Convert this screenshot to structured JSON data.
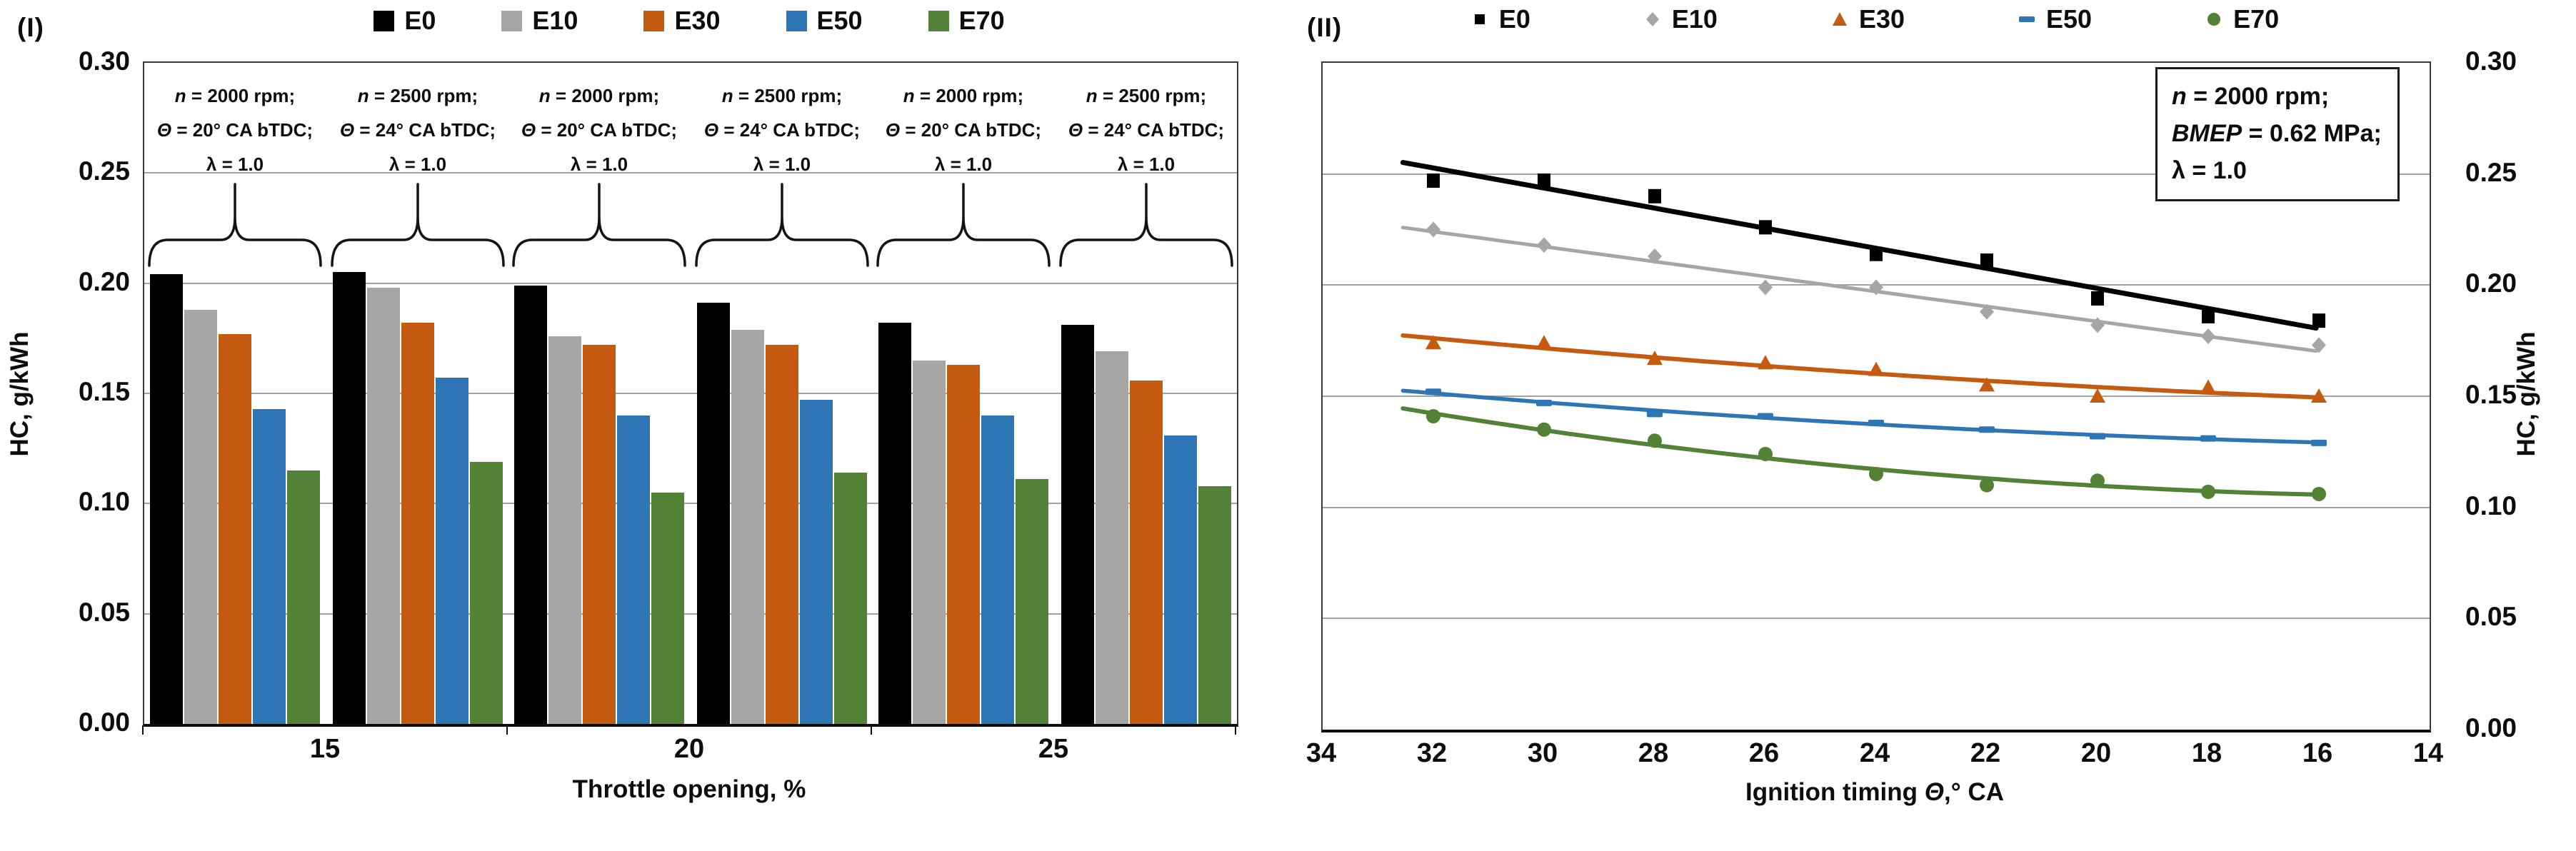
{
  "chart_data": [
    {
      "type": "bar",
      "panel_label": "(I)",
      "ylabel": "HC, g/kWh",
      "xlabel": "Throttle opening, %",
      "ylim": [
        0,
        0.3
      ],
      "yticks": [
        "0.30",
        "0.25",
        "0.20",
        "0.15",
        "0.10",
        "0.05",
        "0.00"
      ],
      "categories": [
        "15",
        "20",
        "25"
      ],
      "legend": [
        "E0",
        "E10",
        "E30",
        "E50",
        "E70"
      ],
      "series_colors": [
        "#000000",
        "#A6A6A6",
        "#C55A11",
        "#2E75B6",
        "#538135"
      ],
      "grid": true,
      "legend_position": "top",
      "groups": [
        {
          "category": "15",
          "conditions": [
            "n = 2000 rpm;",
            "Θ = 20° CA bTDC;",
            "λ = 1.0"
          ],
          "values": [
            0.204,
            0.188,
            0.177,
            0.143,
            0.115
          ]
        },
        {
          "category": "15",
          "conditions": [
            "n = 2500 rpm;",
            "Θ = 24° CA bTDC;",
            "λ = 1.0"
          ],
          "values": [
            0.205,
            0.198,
            0.182,
            0.157,
            0.119
          ]
        },
        {
          "category": "20",
          "conditions": [
            "n = 2000 rpm;",
            "Θ = 20° CA bTDC;",
            "λ = 1.0"
          ],
          "values": [
            0.199,
            0.176,
            0.172,
            0.14,
            0.105
          ]
        },
        {
          "category": "20",
          "conditions": [
            "n = 2500 rpm;",
            "Θ = 24° CA bTDC;",
            "λ = 1.0"
          ],
          "values": [
            0.191,
            0.179,
            0.172,
            0.147,
            0.114
          ]
        },
        {
          "category": "25",
          "conditions": [
            "n = 2000 rpm;",
            "Θ = 20° CA bTDC;",
            "λ = 1.0"
          ],
          "values": [
            0.182,
            0.165,
            0.163,
            0.14,
            0.111
          ]
        },
        {
          "category": "25",
          "conditions": [
            "n = 2500 rpm;",
            "Θ = 24° CA bTDC;",
            "λ = 1.0"
          ],
          "values": [
            0.181,
            0.169,
            0.156,
            0.131,
            0.108
          ]
        }
      ]
    },
    {
      "type": "scatter",
      "panel_label": "(II)",
      "ylabel": "HC, g/kWh",
      "xlabel_prefix": "Ignition timing ",
      "xlabel_symbol": "Θ",
      "xlabel_suffix": ",° CA",
      "xlim": [
        34,
        14
      ],
      "ylim": [
        0,
        0.3
      ],
      "xticks": [
        "34",
        "32",
        "30",
        "28",
        "26",
        "24",
        "22",
        "20",
        "18",
        "16",
        "14"
      ],
      "yticks": [
        "0.30",
        "0.25",
        "0.20",
        "0.15",
        "0.10",
        "0.05",
        "0.00"
      ],
      "grid": true,
      "legend_position": "top",
      "x": [
        32,
        30,
        28,
        26,
        24,
        22,
        20,
        18,
        16
      ],
      "series": [
        {
          "name": "E0",
          "marker": "square",
          "color": "#000000",
          "trend": "linear",
          "values": [
            0.247,
            0.247,
            0.24,
            0.226,
            0.214,
            0.211,
            0.194,
            0.186,
            0.184
          ]
        },
        {
          "name": "E10",
          "marker": "diamond",
          "color": "#A6A6A6",
          "trend": "linear",
          "values": [
            0.225,
            0.218,
            0.213,
            0.199,
            0.199,
            0.188,
            0.182,
            0.177,
            0.173
          ]
        },
        {
          "name": "E30",
          "marker": "triangle",
          "color": "#C55A11",
          "trend": "poly2",
          "values": [
            0.174,
            0.174,
            0.167,
            0.165,
            0.162,
            0.155,
            0.15,
            0.154,
            0.15
          ]
        },
        {
          "name": "E50",
          "marker": "dash",
          "color": "#2E75B6",
          "trend": "poly2",
          "values": [
            0.152,
            0.147,
            0.142,
            0.141,
            0.138,
            0.135,
            0.132,
            0.131,
            0.129
          ]
        },
        {
          "name": "E70",
          "marker": "circle",
          "color": "#538135",
          "trend": "poly2",
          "values": [
            0.141,
            0.135,
            0.13,
            0.124,
            0.115,
            0.11,
            0.112,
            0.107,
            0.106
          ]
        }
      ],
      "note_lines": [
        "n = 2000 rpm;",
        "BMEP = 0.62 MPa;",
        "λ = 1.0"
      ]
    }
  ]
}
